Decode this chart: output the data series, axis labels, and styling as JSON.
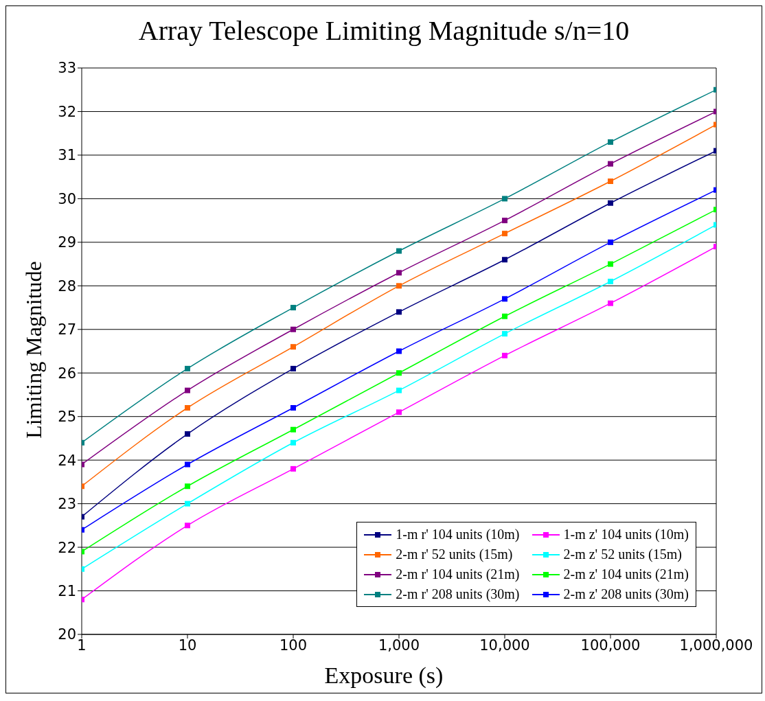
{
  "chart_data": {
    "type": "line",
    "title": "Array Telescope Limiting Magnitude s/n=10",
    "xlabel": "Exposure (s)",
    "ylabel": "Limiting Magnitude",
    "x": [
      1,
      10,
      100,
      1000,
      10000,
      100000,
      1000000
    ],
    "log": "x",
    "xlim": [
      1,
      1000000
    ],
    "xticks": [
      1,
      10,
      100,
      {
        "value": 1000,
        "label": "1,000"
      },
      {
        "value": 10000,
        "label": "10,000"
      },
      {
        "value": 100000,
        "label": "100,000"
      },
      {
        "value": 1000000,
        "label": "1,000,000"
      }
    ],
    "ylim": [
      20,
      33
    ],
    "yticks": [
      20,
      21,
      22,
      23,
      24,
      25,
      26,
      27,
      28,
      29,
      30,
      31,
      32,
      33
    ],
    "grid": "y",
    "legend": "bottom right",
    "marker": "square",
    "line_style": "solid",
    "series": [
      {
        "name": "1-m r' 104 units (10m)",
        "color": "#000080",
        "values": [
          22.7,
          24.6,
          26.1,
          27.4,
          28.6,
          29.9,
          31.1
        ]
      },
      {
        "name": "1-m z' 104 units (10m)",
        "color": "#ff00ff",
        "values": [
          20.8,
          22.5,
          23.8,
          25.1,
          26.4,
          27.6,
          28.9
        ]
      },
      {
        "name": "2-m r' 52 units (15m)",
        "color": "#ff6600",
        "values": [
          23.4,
          25.2,
          26.6,
          28.0,
          29.2,
          30.4,
          31.7
        ]
      },
      {
        "name": "2-m z' 52 units (15m)",
        "color": "#00ffff",
        "values": [
          21.5,
          23.0,
          24.4,
          25.6,
          26.9,
          28.1,
          29.4
        ]
      },
      {
        "name": "2-m r' 104 units (21m)",
        "color": "#800080",
        "values": [
          23.9,
          25.6,
          27.0,
          28.3,
          29.5,
          30.8,
          32.0
        ]
      },
      {
        "name": "2-m z' 104 units (21m)",
        "color": "#00ff00",
        "values": [
          21.9,
          23.4,
          24.7,
          26.0,
          27.3,
          28.5,
          29.75
        ]
      },
      {
        "name": "2-m r' 208 units (30m)",
        "color": "#008080",
        "values": [
          24.4,
          26.1,
          27.5,
          28.8,
          30.0,
          31.3,
          32.5
        ]
      },
      {
        "name": "2-m z' 208 units (30m)",
        "color": "#0000ff",
        "values": [
          22.4,
          23.9,
          25.2,
          26.5,
          27.7,
          29.0,
          30.2
        ]
      }
    ]
  }
}
